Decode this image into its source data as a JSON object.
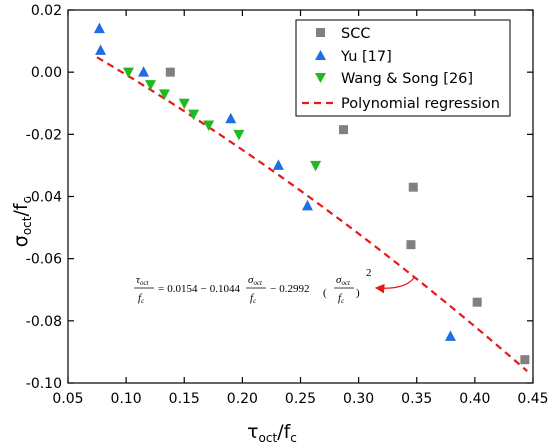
{
  "chart_data": {
    "type": "scatter",
    "xlabel": "τoct/fc",
    "ylabel": "σoct/fc",
    "xlabel_parts": {
      "main": "τ",
      "sub": "oct",
      "sep": "/f",
      "sub2": "c"
    },
    "ylabel_parts": {
      "main": "σ",
      "sub": "oct",
      "sep": "/f",
      "sub2": "c"
    },
    "xlim": [
      0.05,
      0.45
    ],
    "ylim": [
      -0.1,
      0.02
    ],
    "xticks": [
      0.05,
      0.1,
      0.15,
      0.2,
      0.25,
      0.3,
      0.35,
      0.4,
      0.45
    ],
    "yticks": [
      0.02,
      0.0,
      -0.02,
      -0.04,
      -0.06,
      -0.08,
      -0.1
    ],
    "xtick_labels": [
      "0.05",
      "0.10",
      "0.15",
      "0.20",
      "0.25",
      "0.30",
      "0.35",
      "0.40",
      "0.45"
    ],
    "ytick_labels": [
      "0.02",
      "0.00",
      "-0.02",
      "-0.04",
      "-0.06",
      "-0.08",
      "-0.10"
    ],
    "grid": false,
    "legend_position": "top-right",
    "series": [
      {
        "name": "SCC",
        "marker": "square",
        "color": "#808080",
        "x": [
          0.138,
          0.287,
          0.347,
          0.345,
          0.402,
          0.443
        ],
        "y": [
          0.0,
          -0.0185,
          -0.037,
          -0.0555,
          -0.074,
          -0.0925
        ]
      },
      {
        "name": "Yu [17]",
        "marker": "triangle-up",
        "color": "#1f6fe0",
        "x": [
          0.077,
          0.078,
          0.115,
          0.19,
          0.231,
          0.256,
          0.379
        ],
        "y": [
          0.014,
          0.007,
          0.0,
          -0.015,
          -0.03,
          -0.043,
          -0.085
        ]
      },
      {
        "name": "Wang & Song [26]",
        "marker": "triangle-down",
        "color": "#22b822",
        "x": [
          0.102,
          0.121,
          0.133,
          0.15,
          0.158,
          0.171,
          0.197,
          0.263
        ],
        "y": [
          0.0,
          -0.004,
          -0.007,
          -0.01,
          -0.0135,
          -0.017,
          -0.02,
          -0.03
        ]
      }
    ],
    "regression": {
      "name": "Polynomial regression",
      "color": "#e81818",
      "line_style": "dashed",
      "x_range": [
        0.075,
        0.445
      ],
      "equation_coeffs": [
        0.0154,
        -0.1044,
        -0.2992
      ]
    },
    "annotation": {
      "lhs_num": "τ",
      "lhs_num_sub": "oct",
      "lhs_den": "f",
      "lhs_den_sub": "c",
      "equals": "=",
      "c0": "0.0154",
      "op1": "−",
      "c1": "0.1044",
      "op2": "−",
      "c2": "0.2992",
      "term_num": "σ",
      "term_num_sub": "oct",
      "term_den": "f",
      "term_den_sub": "c",
      "power": "2",
      "arrow_target_x": 0.345,
      "arrow_target_y": -0.0655
    }
  }
}
